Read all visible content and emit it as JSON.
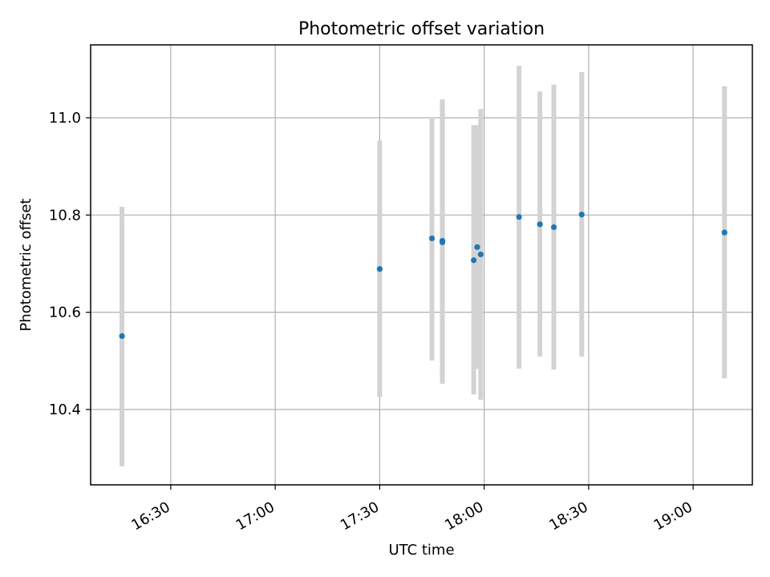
{
  "chart_data": {
    "type": "scatter",
    "title": "Photometric offset variation",
    "xlabel": "UTC time",
    "ylabel": "Photometric offset",
    "x_ticks": [
      "16:30",
      "17:00",
      "17:30",
      "18:00",
      "18:30",
      "19:00"
    ],
    "y_ticks": [
      "10.4",
      "10.6",
      "10.8",
      "11.0"
    ],
    "xlim": [
      "16:07",
      "19:17"
    ],
    "ylim": [
      10.245,
      11.15
    ],
    "grid": true,
    "colors": {
      "marker": "#1f77b4",
      "errorbar": "#d3d3d3",
      "grid": "#b0b0b0"
    },
    "series": [
      {
        "points": [
          {
            "x": "16:16",
            "y": 10.551,
            "err_low": 10.283,
            "err_high": 10.817
          },
          {
            "x": "17:30",
            "y": 10.689,
            "err_low": 10.426,
            "err_high": 10.953
          },
          {
            "x": "17:45",
            "y": 10.752,
            "err_low": 10.501,
            "err_high": 11.001
          },
          {
            "x": "17:48",
            "y": 10.747,
            "err_low": 10.467,
            "err_high": 11.038
          },
          {
            "x": "17:48",
            "y": 10.744,
            "err_low": 10.453,
            "err_high": 11.038
          },
          {
            "x": "17:57",
            "y": 10.707,
            "err_low": 10.431,
            "err_high": 10.985
          },
          {
            "x": "17:58",
            "y": 10.734,
            "err_low": 10.484,
            "err_high": 10.985
          },
          {
            "x": "17:59",
            "y": 10.719,
            "err_low": 10.42,
            "err_high": 11.018
          },
          {
            "x": "18:10",
            "y": 10.796,
            "err_low": 10.484,
            "err_high": 11.107
          },
          {
            "x": "18:16",
            "y": 10.781,
            "err_low": 10.509,
            "err_high": 11.054
          },
          {
            "x": "18:20",
            "y": 10.775,
            "err_low": 10.482,
            "err_high": 11.068
          },
          {
            "x": "18:28",
            "y": 10.801,
            "err_low": 10.509,
            "err_high": 11.094
          },
          {
            "x": "19:09",
            "y": 10.764,
            "err_low": 10.464,
            "err_high": 11.065
          }
        ]
      }
    ]
  }
}
